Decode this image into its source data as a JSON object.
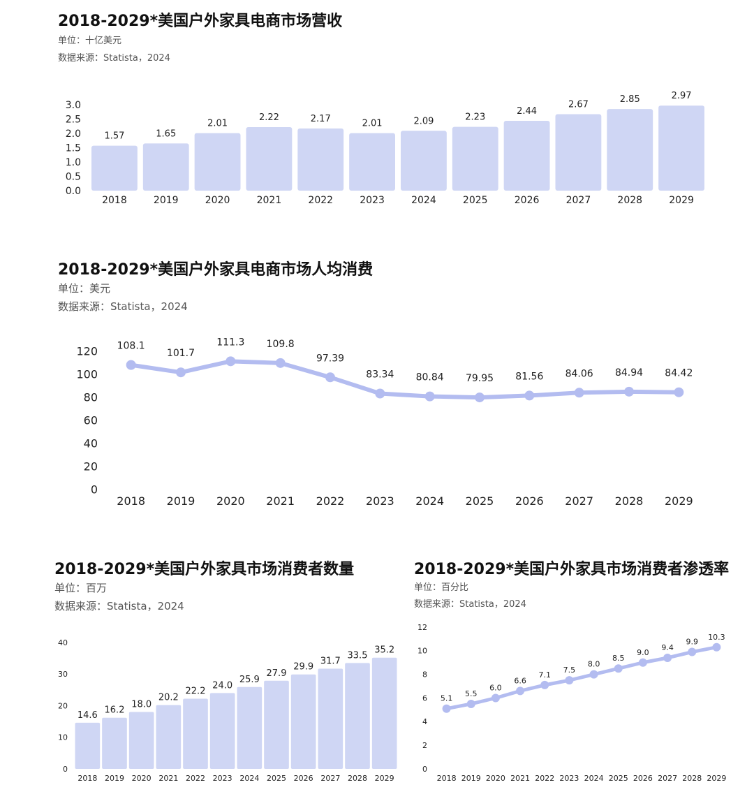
{
  "charts": {
    "revenue": {
      "title": "2018-2029*美国户外家具电商市场营收",
      "unit": "单位：十亿美元",
      "source": "数据来源：Statista，2024"
    },
    "per_capita": {
      "title": "2018-2029*美国户外家具电商市场人均消费",
      "unit": "单位：美元",
      "source": "数据来源：Statista，2024"
    },
    "consumers": {
      "title": "2018-2029*美国户外家具市场消费者数量",
      "unit": "单位：百万",
      "source": "数据来源：Statista，2024"
    },
    "penetration": {
      "title": "2018-2029*美国户外家具市场消费者渗透率",
      "unit": "单位：百分比",
      "source": "数据来源：Statista，2024"
    }
  },
  "colors": {
    "series": "#cfd6f4",
    "line": "#b3bcf0"
  },
  "chart_data": [
    {
      "type": "bar",
      "title": "2018-2029*美国户外家具电商市场营收",
      "categories": [
        "2018",
        "2019",
        "2020",
        "2021",
        "2022",
        "2023",
        "2024",
        "2025",
        "2026",
        "2027",
        "2028",
        "2029"
      ],
      "values": [
        1.57,
        1.65,
        2.01,
        2.22,
        2.17,
        2.01,
        2.09,
        2.23,
        2.44,
        2.67,
        2.85,
        2.97
      ],
      "labels": [
        "1.57",
        "1.65",
        "2.01",
        "2.22",
        "2.17",
        "2.01",
        "2.09",
        "2.23",
        "2.44",
        "2.67",
        "2.85",
        "2.97"
      ],
      "ylim": [
        0,
        3.0
      ],
      "yticks": [
        "0.0",
        "0.5",
        "1.0",
        "1.5",
        "2.0",
        "2.5",
        "3.0"
      ],
      "grid": false,
      "legend": "none"
    },
    {
      "type": "line",
      "title": "2018-2029*美国户外家具电商市场人均消费",
      "categories": [
        "2018",
        "2019",
        "2020",
        "2021",
        "2022",
        "2023",
        "2024",
        "2025",
        "2026",
        "2027",
        "2028",
        "2029"
      ],
      "values": [
        108.1,
        101.7,
        111.3,
        109.8,
        97.39,
        83.34,
        80.84,
        79.95,
        81.56,
        84.06,
        84.94,
        84.42
      ],
      "labels": [
        "108.1",
        "101.7",
        "111.3",
        "109.8",
        "97.39",
        "83.34",
        "80.84",
        "79.95",
        "81.56",
        "84.06",
        "84.94",
        "84.42"
      ],
      "ylim": [
        0,
        120
      ],
      "yticks": [
        "0",
        "20",
        "40",
        "60",
        "80",
        "100",
        "120"
      ],
      "grid": false,
      "legend": "none"
    },
    {
      "type": "bar",
      "title": "2018-2029*美国户外家具市场消费者数量",
      "categories": [
        "2018",
        "2019",
        "2020",
        "2021",
        "2022",
        "2023",
        "2024",
        "2025",
        "2026",
        "2027",
        "2028",
        "2029"
      ],
      "values": [
        14.6,
        16.2,
        18.0,
        20.2,
        22.2,
        24.0,
        25.9,
        27.9,
        29.9,
        31.7,
        33.5,
        35.2
      ],
      "labels": [
        "14.6",
        "16.2",
        "18.0",
        "20.2",
        "22.2",
        "24.0",
        "25.9",
        "27.9",
        "29.9",
        "31.7",
        "33.5",
        "35.2"
      ],
      "ylim": [
        0,
        40
      ],
      "yticks": [
        "0",
        "10",
        "20",
        "30",
        "40"
      ],
      "grid": false,
      "legend": "none"
    },
    {
      "type": "line",
      "title": "2018-2029*美国户外家具市场消费者渗透率",
      "categories": [
        "2018",
        "2019",
        "2020",
        "2021",
        "2022",
        "2023",
        "2024",
        "2025",
        "2026",
        "2027",
        "2028",
        "2029"
      ],
      "values": [
        5.1,
        5.5,
        6.0,
        6.6,
        7.1,
        7.5,
        8.0,
        8.5,
        9.0,
        9.4,
        9.9,
        10.3
      ],
      "labels": [
        "5.1",
        "5.5",
        "6.0",
        "6.6",
        "7.1",
        "7.5",
        "8.0",
        "8.5",
        "9.0",
        "9.4",
        "9.9",
        "10.3"
      ],
      "ylim": [
        0,
        12
      ],
      "yticks": [
        "0",
        "2",
        "4",
        "6",
        "8",
        "10",
        "12"
      ],
      "grid": false,
      "legend": "none"
    }
  ]
}
